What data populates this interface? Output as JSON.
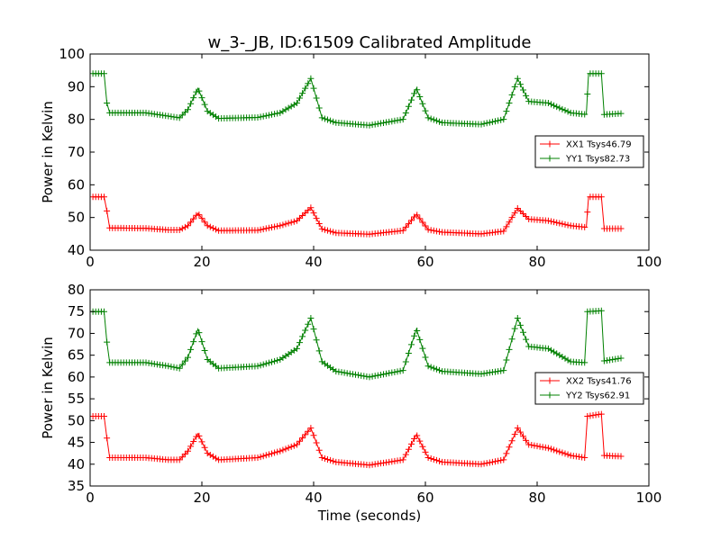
{
  "title": "w_3-_JB, ID:61509 Calibrated Amplitude",
  "xlabel": "Time (seconds)",
  "colors": {
    "xx": "#ff0000",
    "yy": "#008000",
    "axes": "#000000",
    "background": "#ffffff"
  },
  "chart_data": [
    {
      "type": "line",
      "ylabel": "Power in Kelvin",
      "xlim": [
        0,
        100
      ],
      "ylim": [
        40,
        100
      ],
      "xticks": [
        "0",
        "20",
        "40",
        "60",
        "80",
        "100"
      ],
      "yticks": [
        "40",
        "50",
        "60",
        "70",
        "80",
        "90",
        "100"
      ],
      "legend_position": "center-right",
      "marker": "plus",
      "series": [
        {
          "name": "XX1 Tsys46.79",
          "color": "#ff0000",
          "points": [
            [
              0.5,
              56.3
            ],
            [
              2.5,
              56.3
            ],
            [
              3.0,
              52
            ],
            [
              3.5,
              46.8
            ],
            [
              10,
              46.7
            ],
            [
              14,
              46.2
            ],
            [
              16,
              46.2
            ],
            [
              17.5,
              47.5
            ],
            [
              19.3,
              51.3
            ],
            [
              21,
              47.5
            ],
            [
              23,
              46.0
            ],
            [
              30,
              46.1
            ],
            [
              34,
              47.5
            ],
            [
              37,
              49
            ],
            [
              39.5,
              53
            ],
            [
              41.5,
              46.5
            ],
            [
              44,
              45.3
            ],
            [
              50,
              44.9
            ],
            [
              56,
              46
            ],
            [
              58.4,
              51
            ],
            [
              60.5,
              46.3
            ],
            [
              63,
              45.5
            ],
            [
              70,
              45.0
            ],
            [
              74,
              45.8
            ],
            [
              76.5,
              52.8
            ],
            [
              78.5,
              49.5
            ],
            [
              82,
              49.0
            ],
            [
              86,
              47.5
            ],
            [
              88.8,
              47.0
            ],
            [
              89.2,
              56.3
            ],
            [
              91.5,
              56.3
            ],
            [
              92,
              46.6
            ],
            [
              95,
              46.6
            ]
          ]
        },
        {
          "name": "YY1 Tsys82.73",
          "color": "#008000",
          "points": [
            [
              0.5,
              94
            ],
            [
              2.5,
              94
            ],
            [
              3.0,
              85
            ],
            [
              3.5,
              82
            ],
            [
              10,
              82
            ],
            [
              14,
              81
            ],
            [
              16,
              80.5
            ],
            [
              17.5,
              83
            ],
            [
              19.3,
              89.5
            ],
            [
              21,
              82.5
            ],
            [
              23,
              80.3
            ],
            [
              30,
              80.6
            ],
            [
              34,
              82
            ],
            [
              37,
              85
            ],
            [
              39.5,
              92.5
            ],
            [
              41.5,
              80.5
            ],
            [
              44,
              79
            ],
            [
              50,
              78.2
            ],
            [
              56,
              80
            ],
            [
              58.4,
              89.5
            ],
            [
              60.5,
              80.5
            ],
            [
              63,
              79
            ],
            [
              70,
              78.5
            ],
            [
              74,
              80
            ],
            [
              76.5,
              92.5
            ],
            [
              78.5,
              85.5
            ],
            [
              82,
              85
            ],
            [
              86,
              82
            ],
            [
              88.8,
              81.5
            ],
            [
              89.2,
              94
            ],
            [
              91.5,
              94
            ],
            [
              92,
              81.5
            ],
            [
              95,
              81.8
            ]
          ]
        }
      ]
    },
    {
      "type": "line",
      "ylabel": "Power in Kelvin",
      "xlim": [
        0,
        100
      ],
      "ylim": [
        35,
        80
      ],
      "xticks": [
        "0",
        "20",
        "40",
        "60",
        "80",
        "100"
      ],
      "yticks": [
        "35",
        "40",
        "45",
        "50",
        "55",
        "60",
        "65",
        "70",
        "75",
        "80"
      ],
      "legend_position": "center-right",
      "marker": "plus",
      "series": [
        {
          "name": "XX2 Tsys41.76",
          "color": "#ff0000",
          "points": [
            [
              0.5,
              51
            ],
            [
              2.5,
              51
            ],
            [
              3.0,
              46
            ],
            [
              3.5,
              41.5
            ],
            [
              10,
              41.5
            ],
            [
              14,
              41.0
            ],
            [
              16,
              41.0
            ],
            [
              17.5,
              43
            ],
            [
              19.3,
              47
            ],
            [
              21,
              42.5
            ],
            [
              23,
              41
            ],
            [
              30,
              41.5
            ],
            [
              34,
              43
            ],
            [
              37,
              44.5
            ],
            [
              39.5,
              48.3
            ],
            [
              41.5,
              41.5
            ],
            [
              44,
              40.5
            ],
            [
              50,
              39.8
            ],
            [
              56,
              41
            ],
            [
              58.4,
              46.8
            ],
            [
              60.5,
              41.5
            ],
            [
              63,
              40.5
            ],
            [
              70,
              40.0
            ],
            [
              74,
              41
            ],
            [
              76.5,
              48.3
            ],
            [
              78.5,
              44.5
            ],
            [
              82,
              43.7
            ],
            [
              86,
              42.0
            ],
            [
              88.5,
              41.5
            ],
            [
              89,
              51
            ],
            [
              91.5,
              51.5
            ],
            [
              92,
              42
            ],
            [
              95,
              41.8
            ]
          ]
        },
        {
          "name": "YY2 Tsys62.91",
          "color": "#008000",
          "points": [
            [
              0.5,
              75
            ],
            [
              2.5,
              75
            ],
            [
              3.0,
              68
            ],
            [
              3.5,
              63.3
            ],
            [
              10,
              63.3
            ],
            [
              14,
              62.5
            ],
            [
              16,
              62
            ],
            [
              17.5,
              64.5
            ],
            [
              19.3,
              71
            ],
            [
              21,
              64
            ],
            [
              23,
              62
            ],
            [
              30,
              62.5
            ],
            [
              34,
              64
            ],
            [
              37,
              66.5
            ],
            [
              39.5,
              73.5
            ],
            [
              41.5,
              63.5
            ],
            [
              44,
              61.3
            ],
            [
              50,
              60
            ],
            [
              56,
              61.5
            ],
            [
              58.4,
              71
            ],
            [
              60.5,
              62.5
            ],
            [
              63,
              61.3
            ],
            [
              70,
              60.7
            ],
            [
              74,
              61.5
            ],
            [
              76.5,
              73.5
            ],
            [
              78.5,
              67
            ],
            [
              82,
              66.5
            ],
            [
              86,
              63.5
            ],
            [
              88.5,
              63.3
            ],
            [
              89,
              75
            ],
            [
              91.5,
              75.2
            ],
            [
              92,
              63.7
            ],
            [
              95,
              64.3
            ]
          ]
        }
      ]
    }
  ]
}
